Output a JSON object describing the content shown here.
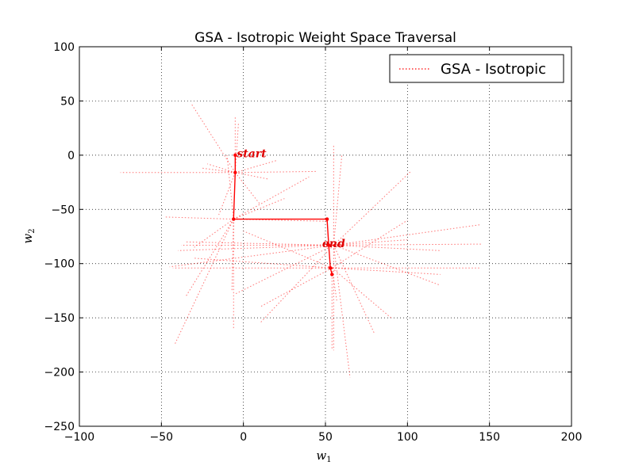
{
  "chart_data": {
    "type": "line",
    "title": "GSA - Isotropic Weight Space Traversal",
    "xlabel": "w",
    "xlabel_sub": "1",
    "ylabel": "w",
    "ylabel_sub": "2",
    "xlim": [
      -100,
      200
    ],
    "ylim": [
      -250,
      100
    ],
    "xticks": [
      -100,
      -50,
      0,
      50,
      100,
      150,
      200
    ],
    "yticks": [
      -250,
      -200,
      -150,
      -100,
      -50,
      0,
      50,
      100
    ],
    "xtick_labels": [
      "−100",
      "−50",
      "0",
      "50",
      "100",
      "150",
      "200"
    ],
    "ytick_labels": [
      "−250",
      "−200",
      "−150",
      "−100",
      "−50",
      "0",
      "50",
      "100"
    ],
    "grid": true,
    "legend": {
      "placement": "top-right",
      "entries": [
        "GSA - Isotropic"
      ]
    },
    "series": [
      {
        "name": "GSA - Isotropic",
        "color": "#ff0000",
        "style": "dotted",
        "path": [
          [
            -5,
            0
          ],
          [
            -5,
            -16
          ],
          [
            -6,
            -59
          ],
          [
            51,
            -59
          ],
          [
            52,
            -83
          ],
          [
            53,
            -104
          ],
          [
            54,
            -110
          ]
        ]
      }
    ],
    "exploration": [
      {
        "center": [
          -5,
          -16
        ],
        "ends": [
          [
            -75,
            -16
          ],
          [
            45,
            -15
          ],
          [
            -5,
            35
          ],
          [
            -3,
            30
          ],
          [
            -15,
            -55
          ],
          [
            10,
            -45
          ],
          [
            -22,
            -8
          ],
          [
            20,
            -5
          ],
          [
            -32,
            48
          ],
          [
            -25,
            -12
          ],
          [
            15,
            -22
          ]
        ]
      },
      {
        "center": [
          -6,
          -59
        ],
        "ends": [
          [
            -48,
            -57
          ],
          [
            52,
            -61
          ],
          [
            -6,
            -160
          ],
          [
            -7,
            -125
          ],
          [
            -42,
            -175
          ],
          [
            40,
            -20
          ],
          [
            -35,
            -130
          ],
          [
            -30,
            -85
          ],
          [
            25,
            -40
          ],
          [
            -10,
            0
          ]
        ]
      },
      {
        "center": [
          55,
          -83
        ],
        "ends": [
          [
            -38,
            -83
          ],
          [
            145,
            -82
          ],
          [
            -35,
            -80
          ],
          [
            145,
            -64
          ],
          [
            -40,
            -88
          ],
          [
            120,
            -88
          ],
          [
            55,
            10
          ],
          [
            55,
            -180
          ],
          [
            -45,
            -103
          ],
          [
            102,
            -15
          ],
          [
            80,
            -165
          ],
          [
            10,
            -155
          ],
          [
            -5,
            -128
          ],
          [
            100,
            -78
          ],
          [
            65,
            -205
          ],
          [
            60,
            0
          ],
          [
            120,
            -120
          ]
        ]
      },
      {
        "center": [
          54,
          -104
        ],
        "ends": [
          [
            -43,
            -104
          ],
          [
            145,
            -104
          ],
          [
            -30,
            -95
          ],
          [
            120,
            -110
          ],
          [
            54,
            -180
          ],
          [
            57,
            -135
          ],
          [
            10,
            -140
          ],
          [
            90,
            -150
          ],
          [
            0,
            -70
          ],
          [
            100,
            -60
          ]
        ]
      }
    ],
    "annotations": [
      {
        "text": "start",
        "x": -4,
        "y": -2
      },
      {
        "text": "end",
        "x": 48,
        "y": -85
      }
    ]
  }
}
